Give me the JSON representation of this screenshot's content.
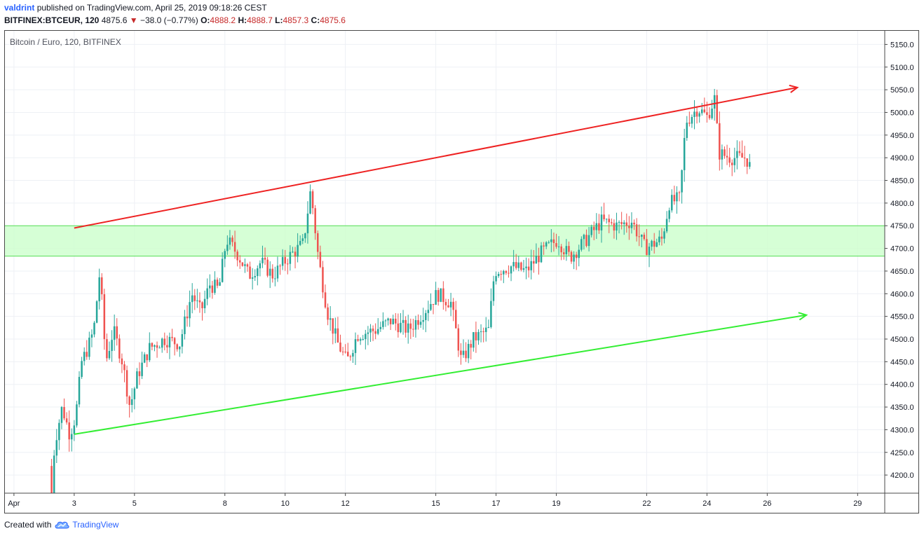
{
  "header": {
    "author": "valdrint",
    "published_text": "published on TradingView.com, April 25, 2019 09:18:26 CEST",
    "symbol": "BITFINEX:BTCEUR, 120",
    "last": "4875.6",
    "change_arrow": "▼",
    "change": "−38.0 (−0.77%)",
    "o_label": "O:",
    "o": "4888.2",
    "h_label": "H:",
    "h": "4888.7",
    "l_label": "L:",
    "l": "4857.3",
    "c_label": "C:",
    "c": "4875.6"
  },
  "footer": {
    "created_with": "Created with",
    "brand": "TradingView",
    "logo_icon": "tradingview-cloud-icon"
  },
  "colors": {
    "up": "#26a69a",
    "down": "#ef5350",
    "zone_fill": "#ccffcc",
    "zone_line": "#55dd55",
    "resistance": "#ee2222",
    "support": "#33ee33",
    "grid": "#eef0f5"
  },
  "chart_data": {
    "type": "candlestick",
    "title": "Bitcoin / Euro, 120, BITFINEX",
    "y_axis_side": "right",
    "ylim": [
      4160,
      5180
    ],
    "y_ticks": [
      "4200.0",
      "4250.0",
      "4300.0",
      "4350.0",
      "4400.0",
      "4450.0",
      "4500.0",
      "4550.0",
      "4600.0",
      "4650.0",
      "4700.0",
      "4750.0",
      "4800.0",
      "4850.0",
      "4900.0",
      "4950.0",
      "5000.0",
      "5050.0",
      "5100.0",
      "5150.0"
    ],
    "x_domain_days": [
      0.7,
      29.9
    ],
    "x_ticks": [
      {
        "day": 1,
        "label": "Apr"
      },
      {
        "day": 3,
        "label": "3"
      },
      {
        "day": 5,
        "label": "5"
      },
      {
        "day": 8,
        "label": "8"
      },
      {
        "day": 10,
        "label": "10"
      },
      {
        "day": 12,
        "label": "12"
      },
      {
        "day": 15,
        "label": "15"
      },
      {
        "day": 17,
        "label": "17"
      },
      {
        "day": 19,
        "label": "19"
      },
      {
        "day": 22,
        "label": "22"
      },
      {
        "day": 24,
        "label": "24"
      },
      {
        "day": 26,
        "label": "26"
      },
      {
        "day": 29,
        "label": "29"
      }
    ],
    "grid": true,
    "candle_interval_hours": 2,
    "horizontal_zone": {
      "from": 4683,
      "to": 4750
    },
    "trendlines": [
      {
        "name": "resistance",
        "from": {
          "day": 3.0,
          "price": 4745
        },
        "to": {
          "day": 27.0,
          "price": 5055
        },
        "arrow": true
      },
      {
        "name": "support",
        "from": {
          "day": 3.0,
          "price": 4290
        },
        "to": {
          "day": 27.3,
          "price": 4553
        },
        "arrow": true
      }
    ],
    "price_path": [
      {
        "day": 2.25,
        "price": 4160
      },
      {
        "day": 2.35,
        "price": 4270
      },
      {
        "day": 2.6,
        "price": 4350
      },
      {
        "day": 2.85,
        "price": 4290
      },
      {
        "day": 3.05,
        "price": 4330
      },
      {
        "day": 3.25,
        "price": 4450
      },
      {
        "day": 3.45,
        "price": 4480
      },
      {
        "day": 3.65,
        "price": 4520
      },
      {
        "day": 3.85,
        "price": 4650
      },
      {
        "day": 4.05,
        "price": 4450
      },
      {
        "day": 4.3,
        "price": 4520
      },
      {
        "day": 4.6,
        "price": 4450
      },
      {
        "day": 4.85,
        "price": 4350
      },
      {
        "day": 5.1,
        "price": 4420
      },
      {
        "day": 5.5,
        "price": 4480
      },
      {
        "day": 6.0,
        "price": 4500
      },
      {
        "day": 6.5,
        "price": 4490
      },
      {
        "day": 6.9,
        "price": 4600
      },
      {
        "day": 7.2,
        "price": 4560
      },
      {
        "day": 7.5,
        "price": 4620
      },
      {
        "day": 7.8,
        "price": 4610
      },
      {
        "day": 8.05,
        "price": 4720
      },
      {
        "day": 8.4,
        "price": 4690
      },
      {
        "day": 8.8,
        "price": 4640
      },
      {
        "day": 9.2,
        "price": 4670
      },
      {
        "day": 9.6,
        "price": 4640
      },
      {
        "day": 10.1,
        "price": 4680
      },
      {
        "day": 10.6,
        "price": 4710
      },
      {
        "day": 10.85,
        "price": 4830
      },
      {
        "day": 11.1,
        "price": 4680
      },
      {
        "day": 11.4,
        "price": 4560
      },
      {
        "day": 11.75,
        "price": 4490
      },
      {
        "day": 12.05,
        "price": 4450
      },
      {
        "day": 12.4,
        "price": 4510
      },
      {
        "day": 13.0,
        "price": 4520
      },
      {
        "day": 13.5,
        "price": 4540
      },
      {
        "day": 14.1,
        "price": 4520
      },
      {
        "day": 14.6,
        "price": 4560
      },
      {
        "day": 15.05,
        "price": 4600
      },
      {
        "day": 15.5,
        "price": 4580
      },
      {
        "day": 15.85,
        "price": 4450
      },
      {
        "day": 16.25,
        "price": 4500
      },
      {
        "day": 16.75,
        "price": 4520
      },
      {
        "day": 16.95,
        "price": 4650
      },
      {
        "day": 17.5,
        "price": 4660
      },
      {
        "day": 18.0,
        "price": 4650
      },
      {
        "day": 18.5,
        "price": 4690
      },
      {
        "day": 19.05,
        "price": 4720
      },
      {
        "day": 19.45,
        "price": 4680
      },
      {
        "day": 20.0,
        "price": 4720
      },
      {
        "day": 20.5,
        "price": 4760
      },
      {
        "day": 21.0,
        "price": 4750
      },
      {
        "day": 21.5,
        "price": 4760
      },
      {
        "day": 21.95,
        "price": 4700
      },
      {
        "day": 22.5,
        "price": 4720
      },
      {
        "day": 22.75,
        "price": 4800
      },
      {
        "day": 23.1,
        "price": 4810
      },
      {
        "day": 23.3,
        "price": 4980
      },
      {
        "day": 23.7,
        "price": 5010
      },
      {
        "day": 24.0,
        "price": 4990
      },
      {
        "day": 24.25,
        "price": 5030
      },
      {
        "day": 24.4,
        "price": 4910
      },
      {
        "day": 24.8,
        "price": 4900
      },
      {
        "day": 25.3,
        "price": 4900
      },
      {
        "day": 25.45,
        "price": 4876
      }
    ]
  }
}
